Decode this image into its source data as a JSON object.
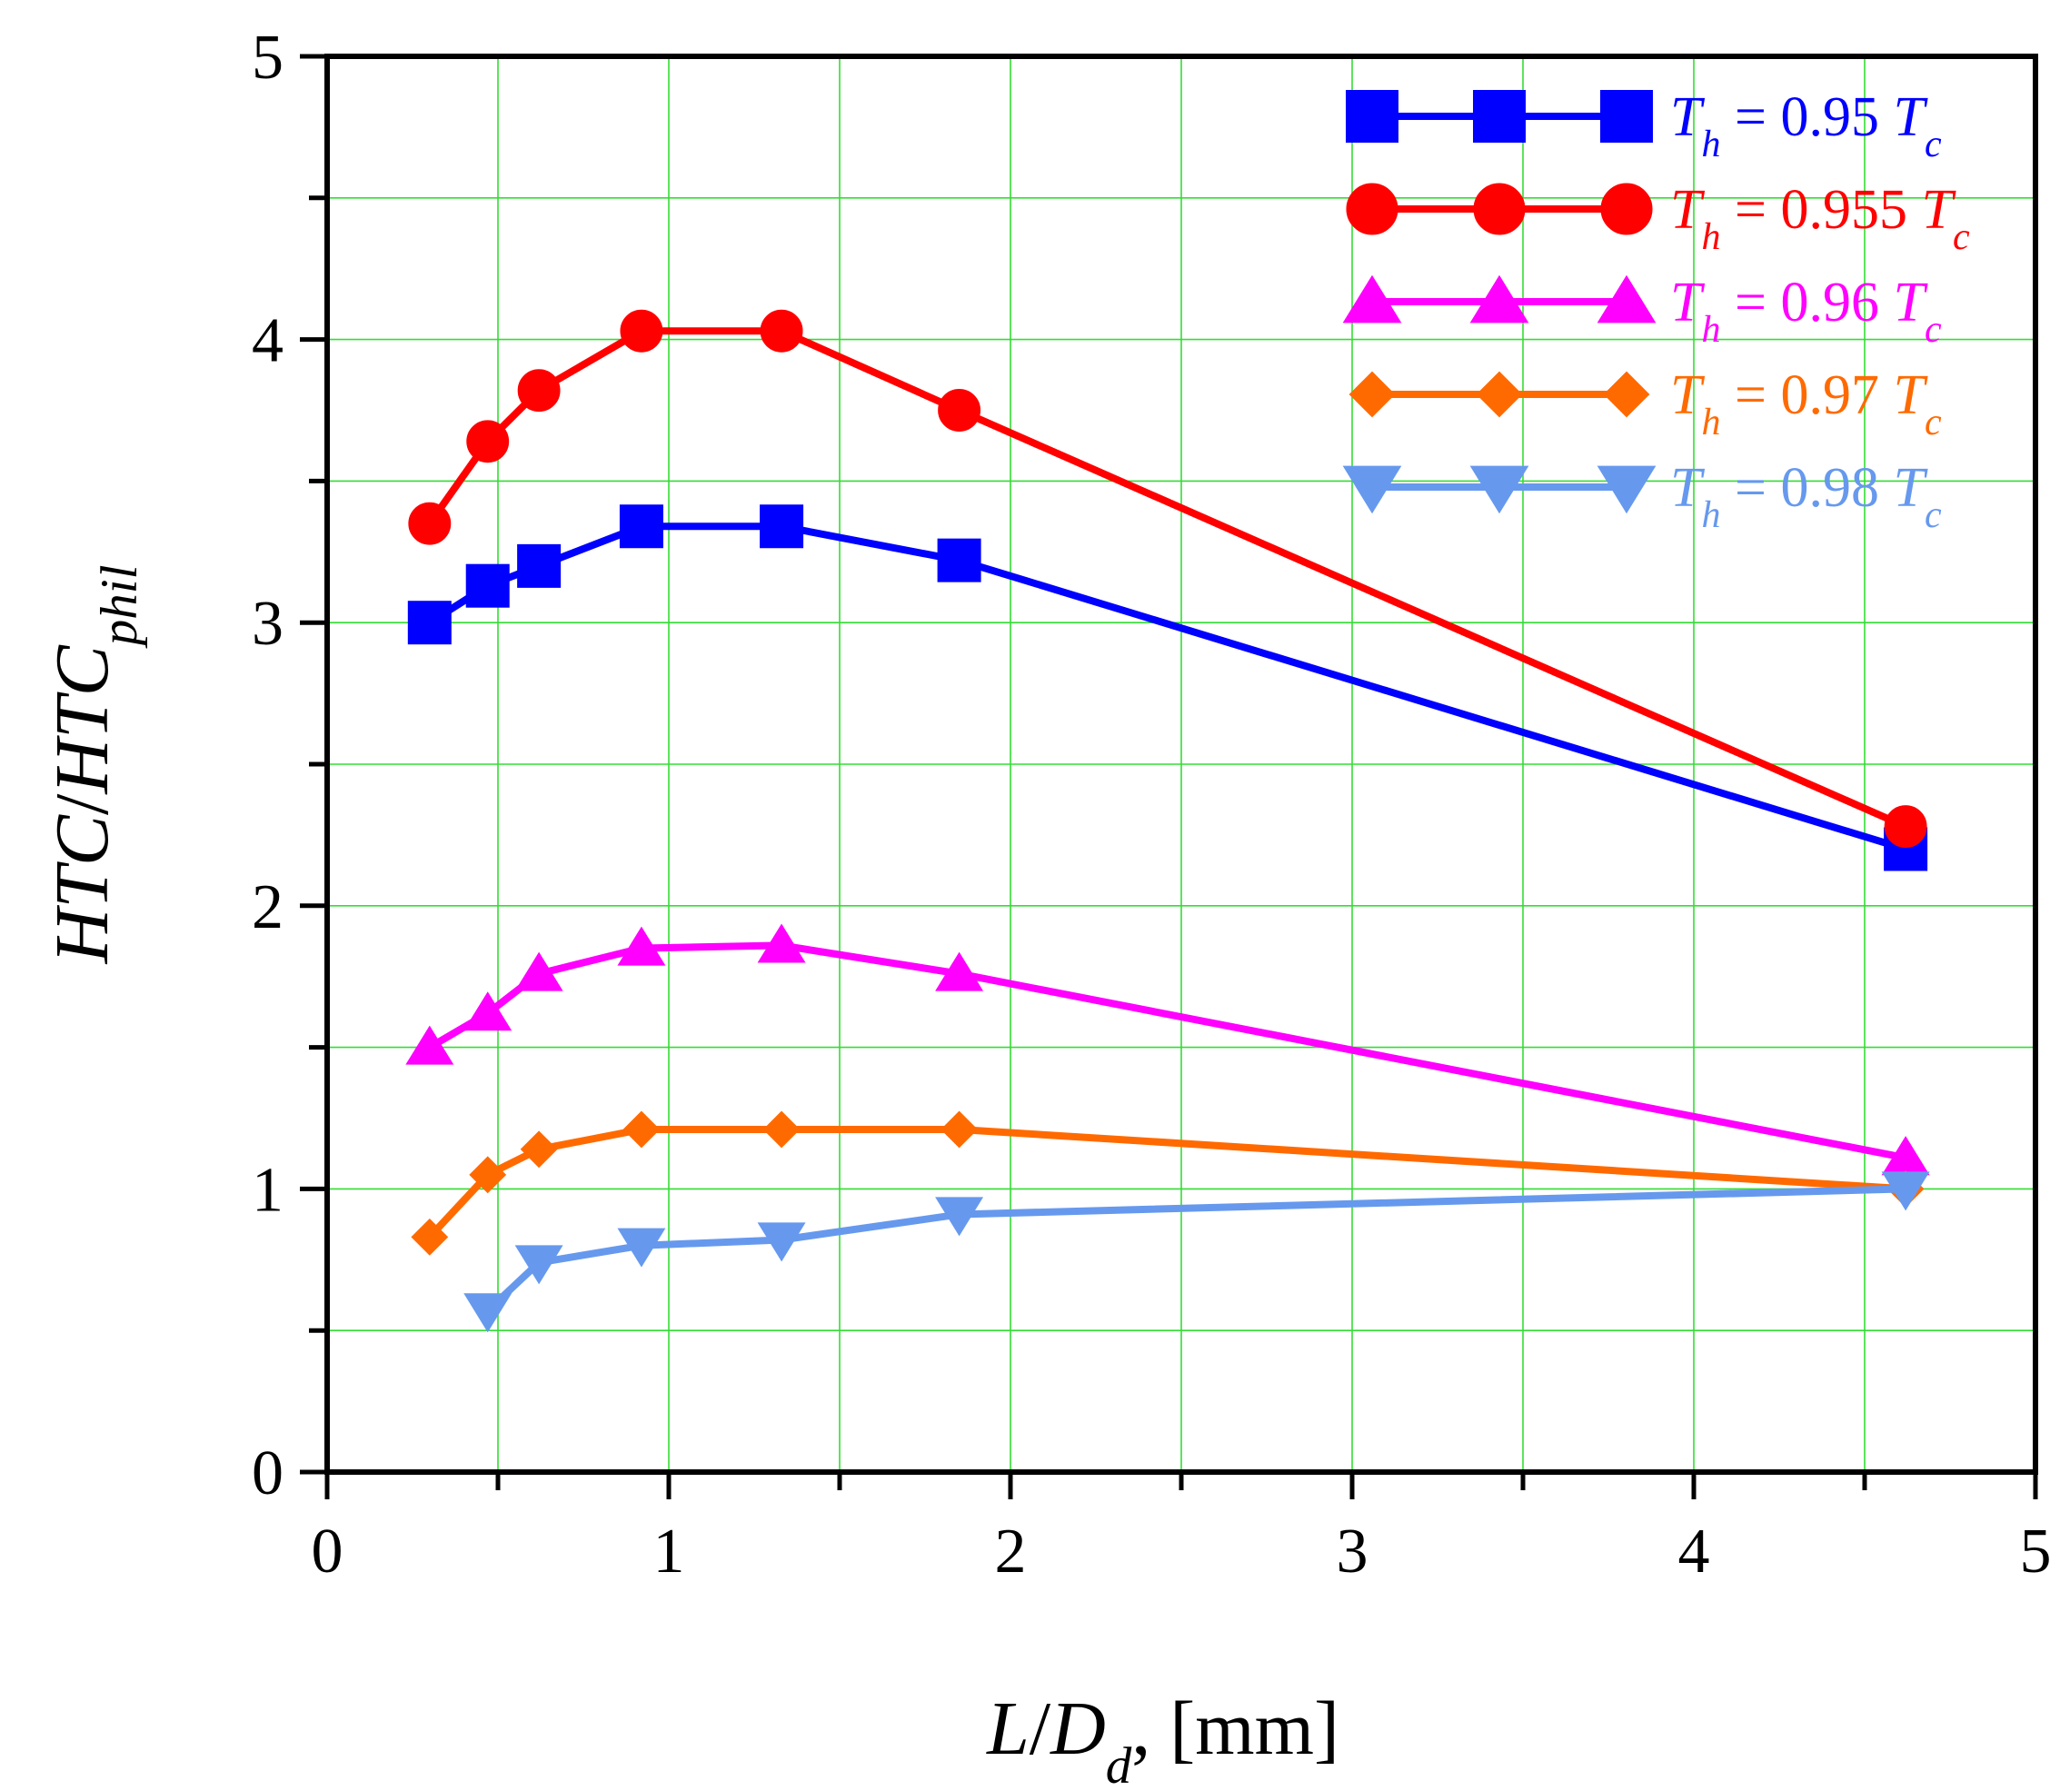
{
  "chart_data": {
    "type": "line",
    "xlabel": {
      "parts": [
        {
          "text": "L",
          "italic": true
        },
        {
          "text": "/",
          "italic": false
        },
        {
          "text": "D",
          "italic": true
        },
        {
          "text": "d",
          "italic": true,
          "sub": true
        },
        {
          "text": ", [mm]",
          "italic": false
        }
      ]
    },
    "ylabel": {
      "parts": [
        {
          "text": "HTC",
          "italic": true
        },
        {
          "text": "/",
          "italic": false
        },
        {
          "text": "HTC",
          "italic": true
        },
        {
          "text": "phil",
          "italic": true,
          "sub": true
        }
      ]
    },
    "xlim": [
      0,
      5
    ],
    "ylim": [
      0,
      5
    ],
    "xticks": [
      "0",
      "1",
      "2",
      "3",
      "4",
      "5"
    ],
    "yticks": [
      "0",
      "1",
      "2",
      "3",
      "4",
      "5"
    ],
    "minor_step": 0.5,
    "grid": true,
    "grid_color": "#33dd33",
    "legend_position": "top-right",
    "series": [
      {
        "name": {
          "sub": "h",
          "value": "0.95",
          "sub2": "c"
        },
        "color": "#0000ff",
        "marker": "square",
        "x": [
          0.3,
          0.47,
          0.62,
          0.92,
          1.33,
          1.85,
          4.62
        ],
        "y": [
          3.0,
          3.13,
          3.2,
          3.34,
          3.34,
          3.22,
          2.2
        ]
      },
      {
        "name": {
          "sub": "h",
          "value": "0.955",
          "sub2": "c"
        },
        "color": "#ff0000",
        "marker": "circle",
        "x": [
          0.3,
          0.47,
          0.62,
          0.92,
          1.33,
          1.85,
          4.62
        ],
        "y": [
          3.35,
          3.64,
          3.82,
          4.03,
          4.03,
          3.75,
          2.28
        ]
      },
      {
        "name": {
          "sub": "h",
          "value": "0.96",
          "sub2": "c"
        },
        "color": "#ff00ff",
        "marker": "triangle-up",
        "x": [
          0.3,
          0.47,
          0.62,
          0.92,
          1.33,
          1.85,
          4.62
        ],
        "y": [
          1.5,
          1.62,
          1.76,
          1.85,
          1.86,
          1.76,
          1.11
        ]
      },
      {
        "name": {
          "sub": "h",
          "value": "0.97",
          "sub2": "c"
        },
        "color": "#ff6a00",
        "marker": "diamond",
        "x": [
          0.3,
          0.47,
          0.62,
          0.92,
          1.33,
          1.85,
          4.62
        ],
        "y": [
          0.83,
          1.05,
          1.14,
          1.21,
          1.21,
          1.21,
          1.0
        ]
      },
      {
        "name": {
          "sub": "h",
          "value": "0.98",
          "sub2": "c"
        },
        "color": "#6699ee",
        "marker": "triangle-down",
        "x": [
          0.47,
          0.62,
          0.92,
          1.33,
          1.85,
          4.62
        ],
        "y": [
          0.57,
          0.74,
          0.8,
          0.82,
          0.91,
          1.0
        ]
      }
    ]
  }
}
